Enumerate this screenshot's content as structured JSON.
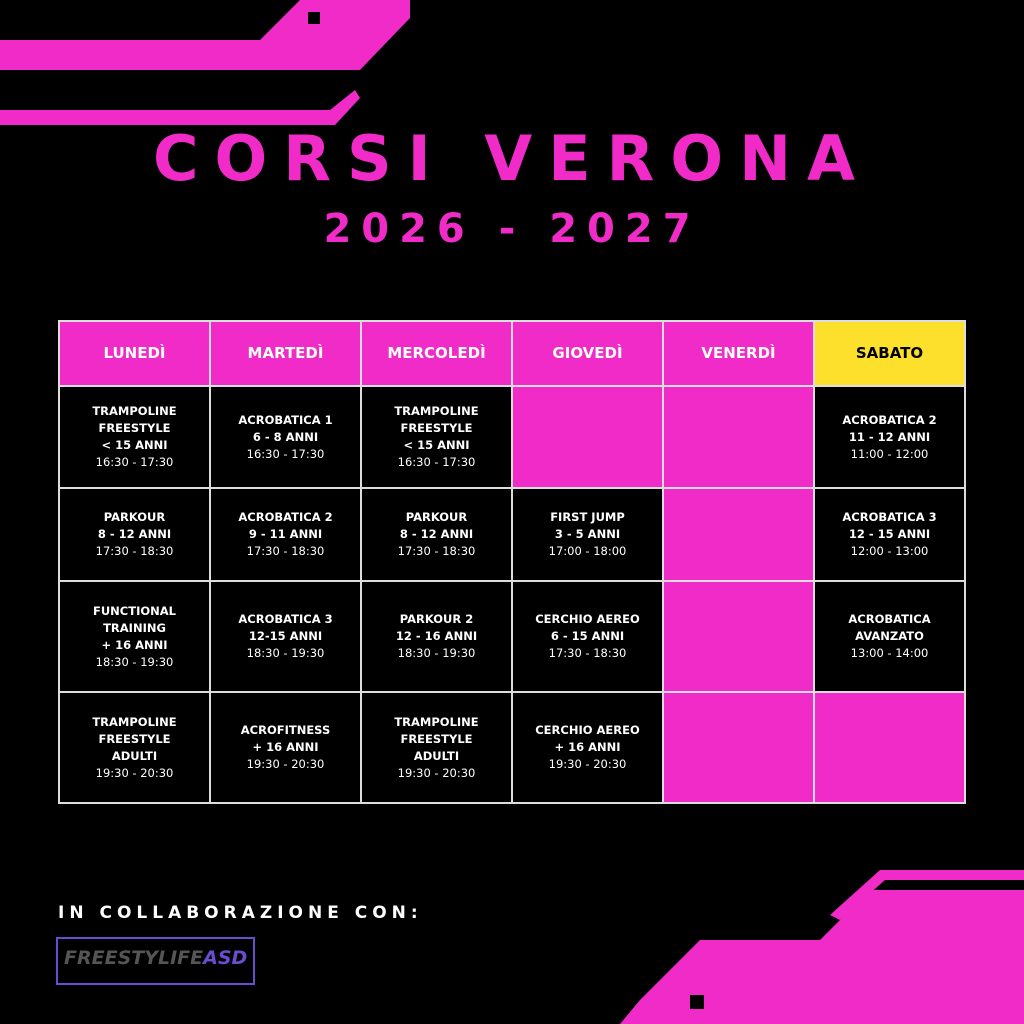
{
  "header": {
    "title": "CORSI VERONA",
    "subtitle": "2026 - 2027"
  },
  "table": {
    "headers": [
      "LUNEDÌ",
      "MARTEDÌ",
      "MERCOLEDÌ",
      "GIOVEDÌ",
      "VENERDÌ",
      "SABATO"
    ],
    "rows": [
      [
        {
          "title": [
            "TRAMPOLINE",
            "FREESTYLE",
            "< 15 ANNI"
          ],
          "time": "16:30 - 17:30"
        },
        {
          "title": [
            "ACROBATICA 1",
            "6 - 8 ANNI"
          ],
          "time": "16:30 - 17:30"
        },
        {
          "title": [
            "TRAMPOLINE",
            "FREESTYLE",
            "< 15 ANNI"
          ],
          "time": "16:30 - 17:30"
        },
        null,
        null,
        {
          "title": [
            "ACROBATICA 2",
            "11 - 12 ANNI"
          ],
          "time": "11:00 - 12:00"
        }
      ],
      [
        {
          "title": [
            "PARKOUR",
            "8 - 12 ANNI"
          ],
          "time": "17:30 - 18:30"
        },
        {
          "title": [
            "ACROBATICA 2",
            "9 - 11 ANNI"
          ],
          "time": "17:30 - 18:30"
        },
        {
          "title": [
            "PARKOUR",
            "8 - 12 ANNI"
          ],
          "time": "17:30 - 18:30"
        },
        {
          "title": [
            "FIRST JUMP",
            "3 - 5 ANNI"
          ],
          "time": "17:00 - 18:00"
        },
        null,
        {
          "title": [
            "ACROBATICA 3",
            "12 - 15 ANNI"
          ],
          "time": "12:00 - 13:00"
        }
      ],
      [
        {
          "title": [
            "FUNCTIONAL",
            "TRAINING",
            "+ 16 ANNI"
          ],
          "time": "18:30 - 19:30"
        },
        {
          "title": [
            "ACROBATICA 3",
            "12-15 ANNI"
          ],
          "time": "18:30 - 19:30"
        },
        {
          "title": [
            "PARKOUR 2",
            "12 - 16 ANNI"
          ],
          "time": "18:30 - 19:30"
        },
        {
          "title": [
            "CERCHIO AEREO",
            "6 - 15 ANNI"
          ],
          "time": "17:30 - 18:30"
        },
        null,
        {
          "title": [
            "ACROBATICA",
            "AVANZATO"
          ],
          "time": "13:00 - 14:00"
        }
      ],
      [
        {
          "title": [
            "TRAMPOLINE",
            "FREESTYLE",
            "ADULTI"
          ],
          "time": "19:30 - 20:30"
        },
        {
          "title": [
            "ACROFITNESS",
            "+ 16 ANNI"
          ],
          "time": "19:30 - 20:30"
        },
        {
          "title": [
            "TRAMPOLINE",
            "FREESTYLE",
            "ADULTI"
          ],
          "time": "19:30 - 20:30"
        },
        {
          "title": [
            "CERCHIO AEREO",
            "+ 16 ANNI"
          ],
          "time": "19:30 - 20:30"
        },
        null,
        null
      ]
    ]
  },
  "footer": {
    "text": "IN COLLABORAZIONE CON:",
    "logo": {
      "name": "FREESTYLIFE",
      "suffix": "ASD"
    }
  }
}
